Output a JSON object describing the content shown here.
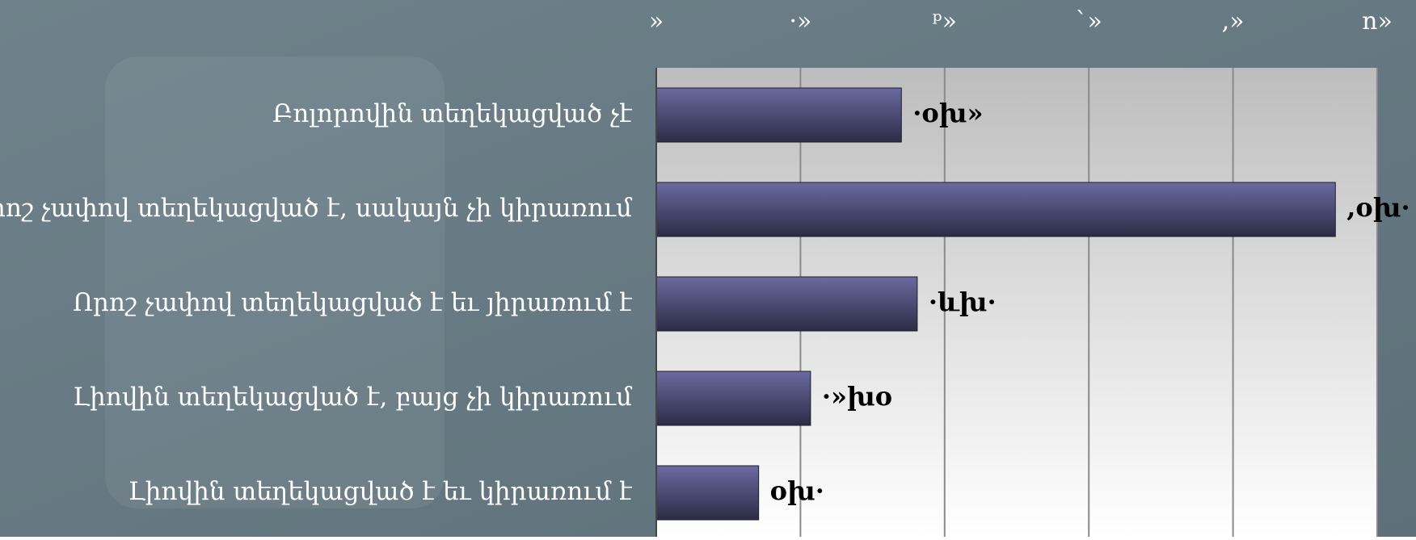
{
  "chart_data": {
    "type": "bar",
    "orientation": "horizontal",
    "categories": [
      "Բոլորովին տեղեկացված չէ",
      "Որոշ չափով տեղեկացված է, սակայն չի կիրառում",
      "Որոշ չափով տեղեկացված է եւ յիրառում է",
      "Լիովին տեղեկացված է, բայց չի կիրառում",
      "Լիովին տեղեկացված է եւ կիրառում է"
    ],
    "values": [
      17,
      47.1,
      18.1,
      10.7,
      7.1
    ],
    "value_labels": [
      "·oխ»",
      ",oխ·",
      "·ևխ·",
      "·»խo",
      "oխ·"
    ],
    "color": "#5a5a8a",
    "xlim": [
      0,
      50
    ],
    "xticks": [
      {
        "value": 0,
        "label": "»"
      },
      {
        "value": 10,
        "label": "·»"
      },
      {
        "value": 20,
        "label": "ᵖ»"
      },
      {
        "value": 30,
        "label": "`»"
      },
      {
        "value": 40,
        "label": ",»"
      },
      {
        "value": 50,
        "label": "n»"
      }
    ],
    "grid": true
  }
}
